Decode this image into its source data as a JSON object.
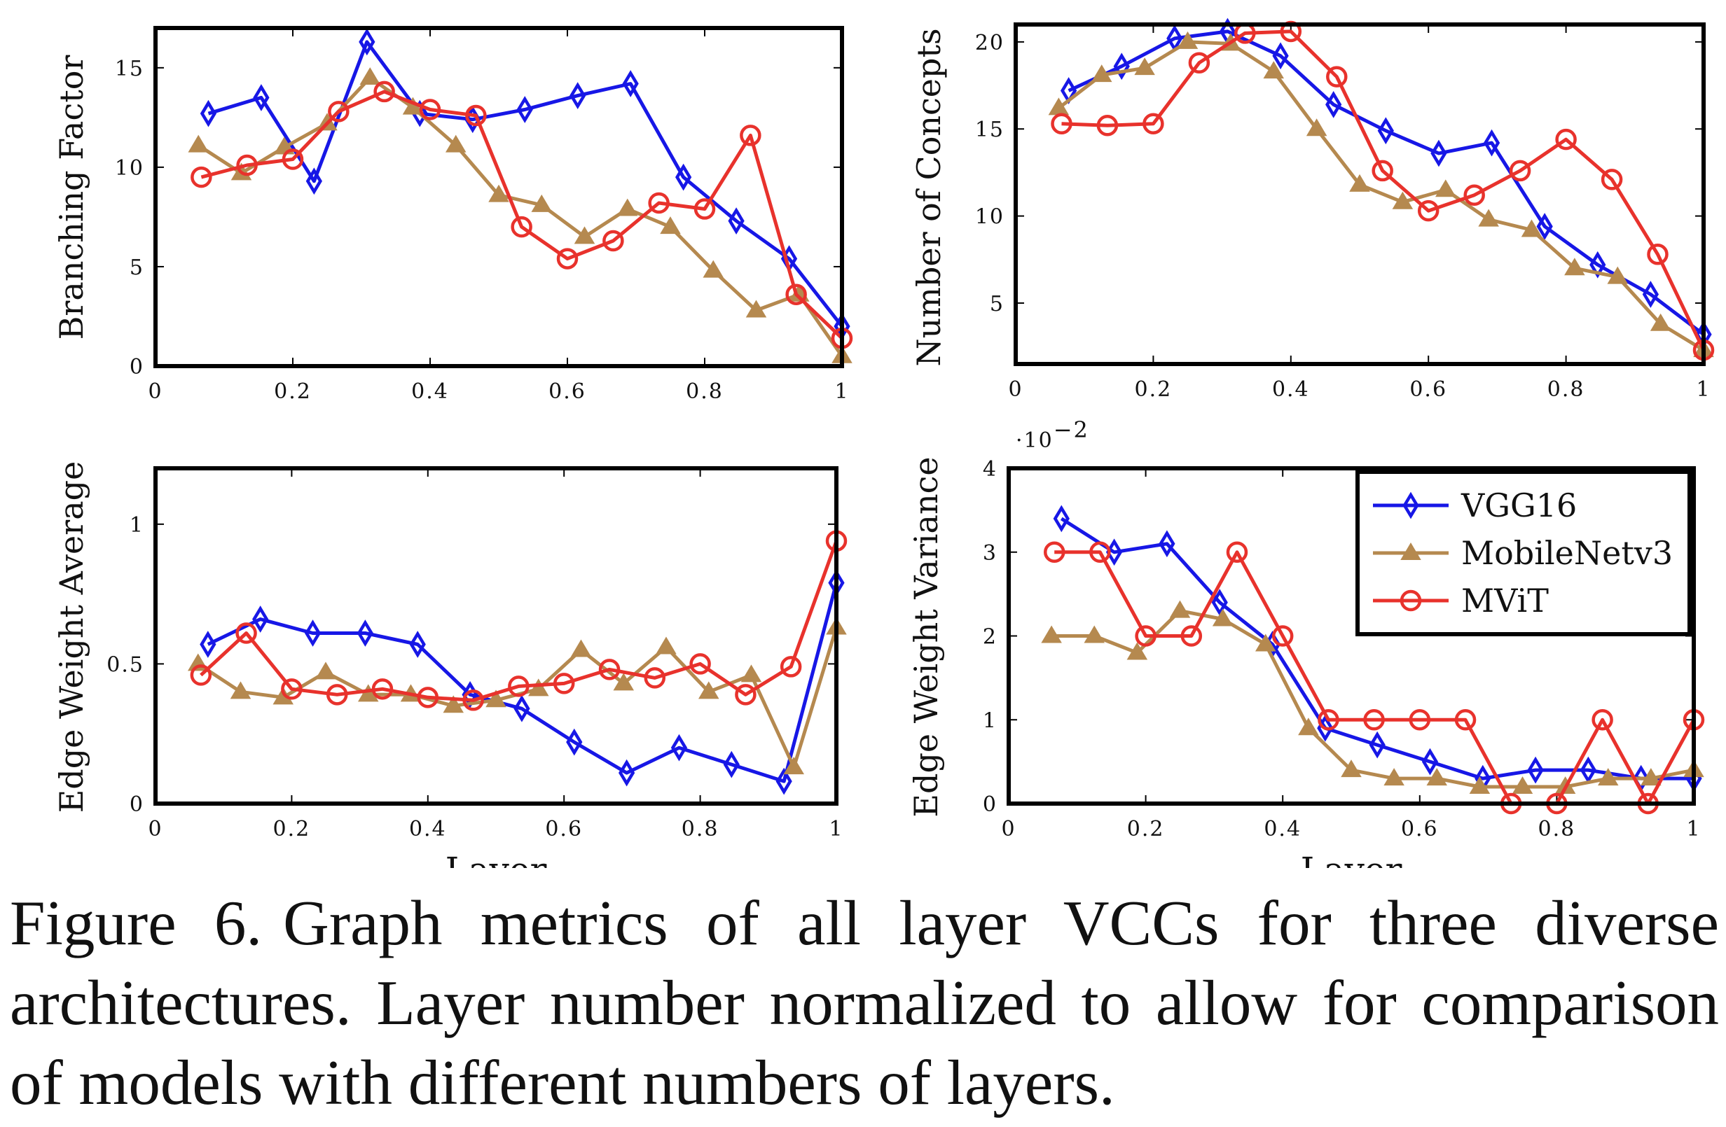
{
  "colors": {
    "vgg": "#1717e6",
    "mobile": "#b5894f",
    "mvit": "#e8322c"
  },
  "legend": {
    "entries": [
      "VGG16",
      "MobileNetv3",
      "MViT"
    ]
  },
  "chart_data": [
    {
      "type": "line",
      "title": "",
      "ylabel": "Branching Factor",
      "xlabel": "",
      "xlim": [
        0,
        1
      ],
      "ylim": [
        0,
        17
      ],
      "xticks": [
        "0",
        "0.2",
        "0.4",
        "0.6",
        "0.8",
        "1"
      ],
      "yticks": [
        "0",
        "5",
        "10",
        "15"
      ],
      "series": [
        {
          "name": "VGG16",
          "x": [
            0.077,
            0.154,
            0.231,
            0.308,
            0.385,
            0.462,
            0.538,
            0.615,
            0.692,
            0.769,
            0.846,
            0.923,
            1.0
          ],
          "y": [
            12.7,
            13.5,
            9.3,
            16.3,
            12.7,
            12.4,
            12.9,
            13.6,
            14.2,
            9.5,
            7.3,
            5.4,
            2.0
          ]
        },
        {
          "name": "MobileNetv3",
          "x": [
            0.0625,
            0.125,
            0.1875,
            0.25,
            0.3125,
            0.375,
            0.4375,
            0.5,
            0.5625,
            0.625,
            0.6875,
            0.75,
            0.8125,
            0.875,
            0.9375,
            1.0
          ],
          "y": [
            11.1,
            9.7,
            11.0,
            12.2,
            14.5,
            13.0,
            11.1,
            8.6,
            8.1,
            6.5,
            7.9,
            7.0,
            4.8,
            2.8,
            3.6,
            0.5
          ]
        },
        {
          "name": "MViT",
          "x": [
            0.0667,
            0.1333,
            0.2,
            0.2667,
            0.3333,
            0.4,
            0.4667,
            0.5333,
            0.6,
            0.6667,
            0.7333,
            0.8,
            0.8667,
            0.9333,
            1.0
          ],
          "y": [
            9.5,
            10.1,
            10.4,
            12.8,
            13.8,
            12.9,
            12.6,
            7.0,
            5.4,
            6.3,
            8.2,
            7.9,
            11.6,
            3.6,
            1.4
          ]
        }
      ]
    },
    {
      "type": "line",
      "title": "",
      "ylabel": "Number of Concepts",
      "xlabel": "",
      "xlim": [
        0,
        1
      ],
      "ylim": [
        1.5,
        21
      ],
      "xticks": [
        "0",
        "0.2",
        "0.4",
        "0.6",
        "0.8",
        "1"
      ],
      "yticks": [
        "5",
        "10",
        "15",
        "20"
      ],
      "series": [
        {
          "name": "VGG16",
          "x": [
            0.077,
            0.154,
            0.231,
            0.308,
            0.385,
            0.462,
            0.538,
            0.615,
            0.692,
            0.769,
            0.846,
            0.923,
            1.0
          ],
          "y": [
            17.2,
            18.6,
            20.2,
            20.6,
            19.2,
            16.4,
            14.9,
            13.6,
            14.2,
            9.4,
            7.2,
            5.5,
            3.2
          ]
        },
        {
          "name": "MobileNetv3",
          "x": [
            0.0625,
            0.125,
            0.1875,
            0.25,
            0.3125,
            0.375,
            0.4375,
            0.5,
            0.5625,
            0.625,
            0.6875,
            0.75,
            0.8125,
            0.875,
            0.9375,
            1.0
          ],
          "y": [
            16.2,
            18.1,
            18.5,
            20.0,
            19.9,
            18.3,
            15.0,
            11.8,
            10.8,
            11.5,
            9.8,
            9.2,
            7.0,
            6.5,
            3.8,
            2.3
          ]
        },
        {
          "name": "MViT",
          "x": [
            0.0667,
            0.1333,
            0.2,
            0.2667,
            0.3333,
            0.4,
            0.4667,
            0.5333,
            0.6,
            0.6667,
            0.7333,
            0.8,
            0.8667,
            0.9333,
            1.0
          ],
          "y": [
            15.3,
            15.2,
            15.3,
            18.8,
            20.5,
            20.6,
            18.0,
            12.6,
            10.3,
            11.2,
            12.6,
            14.4,
            12.1,
            7.8,
            2.3
          ]
        }
      ]
    },
    {
      "type": "line",
      "title": "",
      "ylabel": "Edge Weight Average",
      "xlabel": "Layer",
      "xlim": [
        0,
        1
      ],
      "ylim": [
        0,
        1.2
      ],
      "xticks": [
        "0",
        "0.2",
        "0.4",
        "0.6",
        "0.8",
        "1"
      ],
      "yticks": [
        "0",
        "0.5",
        "1"
      ],
      "series": [
        {
          "name": "VGG16",
          "x": [
            0.077,
            0.154,
            0.231,
            0.308,
            0.385,
            0.462,
            0.538,
            0.615,
            0.692,
            0.769,
            0.846,
            0.923,
            1.0
          ],
          "y": [
            0.57,
            0.66,
            0.61,
            0.61,
            0.57,
            0.39,
            0.34,
            0.22,
            0.11,
            0.2,
            0.14,
            0.08,
            0.79
          ]
        },
        {
          "name": "MobileNetv3",
          "x": [
            0.0625,
            0.125,
            0.1875,
            0.25,
            0.3125,
            0.375,
            0.4375,
            0.5,
            0.5625,
            0.625,
            0.6875,
            0.75,
            0.8125,
            0.875,
            0.9375,
            1.0
          ],
          "y": [
            0.5,
            0.4,
            0.38,
            0.47,
            0.39,
            0.39,
            0.35,
            0.37,
            0.41,
            0.55,
            0.43,
            0.56,
            0.4,
            0.46,
            0.13,
            0.63
          ]
        },
        {
          "name": "MViT",
          "x": [
            0.0667,
            0.1333,
            0.2,
            0.2667,
            0.3333,
            0.4,
            0.4667,
            0.5333,
            0.6,
            0.6667,
            0.7333,
            0.8,
            0.8667,
            0.9333,
            1.0
          ],
          "y": [
            0.46,
            0.61,
            0.41,
            0.39,
            0.41,
            0.38,
            0.37,
            0.42,
            0.43,
            0.48,
            0.45,
            0.5,
            0.39,
            0.49,
            0.94
          ]
        }
      ]
    },
    {
      "type": "line",
      "title": "",
      "ylabel": "Edge Weight Variance",
      "xlabel": "Layer",
      "xlim": [
        0,
        1
      ],
      "ylim": [
        0,
        4
      ],
      "xticks": [
        "0",
        "0.2",
        "0.4",
        "0.6",
        "0.8",
        "1"
      ],
      "yticks": [
        "0",
        "1",
        "2",
        "3",
        "4"
      ],
      "scale_note": "·10",
      "scale_exp": "−2",
      "legend_position": "top-right",
      "series": [
        {
          "name": "VGG16",
          "x": [
            0.077,
            0.154,
            0.231,
            0.308,
            0.385,
            0.462,
            0.538,
            0.615,
            0.692,
            0.769,
            0.846,
            0.923,
            1.0
          ],
          "y": [
            3.4,
            3.0,
            3.1,
            2.4,
            1.9,
            0.9,
            0.7,
            0.5,
            0.3,
            0.4,
            0.4,
            0.3,
            0.3
          ]
        },
        {
          "name": "MobileNetv3",
          "x": [
            0.0625,
            0.125,
            0.1875,
            0.25,
            0.3125,
            0.375,
            0.4375,
            0.5,
            0.5625,
            0.625,
            0.6875,
            0.75,
            0.8125,
            0.875,
            0.9375,
            1.0
          ],
          "y": [
            2.0,
            2.0,
            1.8,
            2.3,
            2.2,
            1.9,
            0.9,
            0.4,
            0.3,
            0.3,
            0.2,
            0.2,
            0.2,
            0.3,
            0.3,
            0.4
          ]
        },
        {
          "name": "MViT",
          "x": [
            0.0667,
            0.1333,
            0.2,
            0.2667,
            0.3333,
            0.4,
            0.4667,
            0.5333,
            0.6,
            0.6667,
            0.7333,
            0.8,
            0.8667,
            0.9333,
            1.0
          ],
          "y": [
            3.0,
            3.0,
            2.0,
            2.0,
            3.0,
            2.0,
            1.0,
            1.0,
            1.0,
            1.0,
            0.0,
            0.0,
            1.0,
            0.0,
            1.0
          ]
        }
      ]
    }
  ],
  "caption": {
    "label": "Figure 6.",
    "text": "Graph metrics of all layer VCCs for three diverse architectures. Layer number normalized to allow for comparison of models with different numbers of layers."
  }
}
